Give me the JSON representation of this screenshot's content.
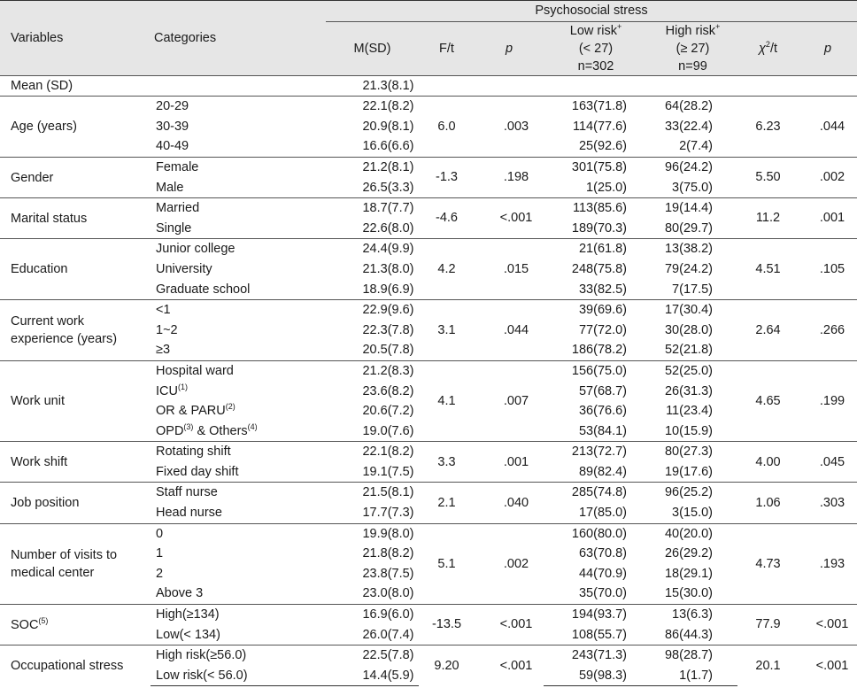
{
  "header": {
    "psychosocial_stress": "Psychosocial stress",
    "variables": "Variables",
    "categories": "Categories",
    "msd": "M(SD)",
    "ft": "F/t",
    "p": "p",
    "low_risk_l1": "Low risk",
    "low_risk_sup": "+",
    "low_risk_l2": "(< 27)",
    "low_risk_l3": "n=302",
    "high_risk_l1": "High risk",
    "high_risk_sup": "+",
    "high_risk_l2": "(≥ 27)",
    "high_risk_l3": "n=99",
    "chi": "χ",
    "chi_sup": "2",
    "chi_suffix": "/t",
    "p2": "p"
  },
  "mean_row": {
    "variable": "Mean (SD)",
    "msd": "21.3(8.1)"
  },
  "groups": [
    {
      "variable": "Age (years)",
      "ft": "6.0",
      "p": ".003",
      "chi": "6.23",
      "p2": ".044",
      "rows": [
        {
          "cat": "20-29",
          "msd": "22.1(8.2)",
          "low": "163(71.8)",
          "high": "64(28.2)"
        },
        {
          "cat": "30-39",
          "msd": "20.9(8.1)",
          "low": "114(77.6)",
          "high": "33(22.4)"
        },
        {
          "cat": "40-49",
          "msd": "16.6(6.6)",
          "low": "25(92.6)",
          "high": "2(7.4)"
        }
      ]
    },
    {
      "variable": "Gender",
      "ft": "-1.3",
      "p": ".198",
      "chi": "5.50",
      "p2": ".002",
      "rows": [
        {
          "cat": "Female",
          "msd": "21.2(8.1)",
          "low": "301(75.8)",
          "high": "96(24.2)"
        },
        {
          "cat": "Male",
          "msd": "26.5(3.3)",
          "low": "1(25.0)",
          "high": "3(75.0)"
        }
      ]
    },
    {
      "variable": "Marital status",
      "ft": "-4.6",
      "p": "<.001",
      "chi": "11.2",
      "p2": ".001",
      "rows": [
        {
          "cat": "Married",
          "msd": "18.7(7.7)",
          "low": "113(85.6)",
          "high": "19(14.4)"
        },
        {
          "cat": "Single",
          "msd": "22.6(8.0)",
          "low": "189(70.3)",
          "high": "80(29.7)"
        }
      ]
    },
    {
      "variable": "Education",
      "ft": "4.2",
      "p": ".015",
      "chi": "4.51",
      "p2": ".105",
      "rows": [
        {
          "cat": "Junior college",
          "msd": "24.4(9.9)",
          "low": "21(61.8)",
          "high": "13(38.2)"
        },
        {
          "cat": "University",
          "msd": "21.3(8.0)",
          "low": "248(75.8)",
          "high": "79(24.2)"
        },
        {
          "cat": "Graduate school",
          "msd": "18.9(6.9)",
          "low": "33(82.5)",
          "high": "7(17.5)"
        }
      ]
    },
    {
      "variable": "Current work experience (years)",
      "ft": "3.1",
      "p": ".044",
      "chi": "2.64",
      "p2": ".266",
      "rows": [
        {
          "cat": "<1",
          "msd": "22.9(9.6)",
          "low": "39(69.6)",
          "high": "17(30.4)"
        },
        {
          "cat": "1~2",
          "msd": "22.3(7.8)",
          "low": "77(72.0)",
          "high": "30(28.0)"
        },
        {
          "cat": "≥3",
          "msd": "20.5(7.8)",
          "low": "186(78.2)",
          "high": "52(21.8)"
        }
      ]
    },
    {
      "variable": "Work unit",
      "ft": "4.1",
      "p": ".007",
      "chi": "4.65",
      "p2": ".199",
      "rows": [
        {
          "cat": "Hospital ward",
          "msd": "21.2(8.3)",
          "low": "156(75.0)",
          "high": "52(25.0)"
        },
        {
          "cat": "ICU",
          "cat_sup": "(1)",
          "msd": "23.6(8.2)",
          "low": "57(68.7)",
          "high": "26(31.3)"
        },
        {
          "cat": "OR & PARU",
          "cat_sup": "(2)",
          "msd": "20.6(7.2)",
          "low": "36(76.6)",
          "high": "11(23.4)"
        },
        {
          "cat": "OPD",
          "cat_sup": "(3)",
          "cat_tail": " & Others",
          "cat_tail_sup": "(4)",
          "msd": "19.0(7.6)",
          "low": "53(84.1)",
          "high": "10(15.9)"
        }
      ]
    },
    {
      "variable": "Work shift",
      "ft": "3.3",
      "p": ".001",
      "chi": "4.00",
      "p2": ".045",
      "rows": [
        {
          "cat": "Rotating shift",
          "msd": "22.1(8.2)",
          "low": "213(72.7)",
          "high": "80(27.3)"
        },
        {
          "cat": "Fixed day shift",
          "msd": "19.1(7.5)",
          "low": "89(82.4)",
          "high": "19(17.6)"
        }
      ]
    },
    {
      "variable": "Job position",
      "ft": "2.1",
      "p": ".040",
      "chi": "1.06",
      "p2": ".303",
      "rows": [
        {
          "cat": "Staff nurse",
          "msd": "21.5(8.1)",
          "low": "285(74.8)",
          "high": "96(25.2)"
        },
        {
          "cat": "Head nurse",
          "msd": "17.7(7.3)",
          "low": "17(85.0)",
          "high": "3(15.0)"
        }
      ]
    },
    {
      "variable": "Number of visits to medical center",
      "ft": "5.1",
      "p": ".002",
      "chi": "4.73",
      "p2": ".193",
      "rows": [
        {
          "cat": "0",
          "msd": "19.9(8.0)",
          "low": "160(80.0)",
          "high": "40(20.0)"
        },
        {
          "cat": "1",
          "msd": "21.8(8.2)",
          "low": "63(70.8)",
          "high": "26(29.2)"
        },
        {
          "cat": "2",
          "msd": "23.8(7.5)",
          "low": "44(70.9)",
          "high": "18(29.1)"
        },
        {
          "cat": "Above 3",
          "msd": "23.0(8.0)",
          "low": "35(70.0)",
          "high": "15(30.0)"
        }
      ]
    },
    {
      "variable": "SOC",
      "variable_sup": "(5)",
      "ft": "-13.5",
      "p": "<.001",
      "chi": "77.9",
      "p2": "<.001",
      "rows": [
        {
          "cat": "High(≥134)",
          "msd": "16.9(6.0)",
          "low": "194(93.7)",
          "high": "13(6.3)"
        },
        {
          "cat": "Low(< 134)",
          "msd": "26.0(7.4)",
          "low": "108(55.7)",
          "high": "86(44.3)"
        }
      ]
    },
    {
      "variable": "Occupational stress",
      "ft": "9.20",
      "p": "<.001",
      "chi": "20.1",
      "p2": "<.001",
      "rows": [
        {
          "cat": "High risk(≥56.0)",
          "msd": "22.5(7.8)",
          "low": "243(71.3)",
          "high": "98(28.7)"
        },
        {
          "cat": "Low risk(< 56.0)",
          "msd": "14.4(5.9)",
          "low": "59(98.3)",
          "high": "1(1.7)"
        }
      ]
    }
  ]
}
